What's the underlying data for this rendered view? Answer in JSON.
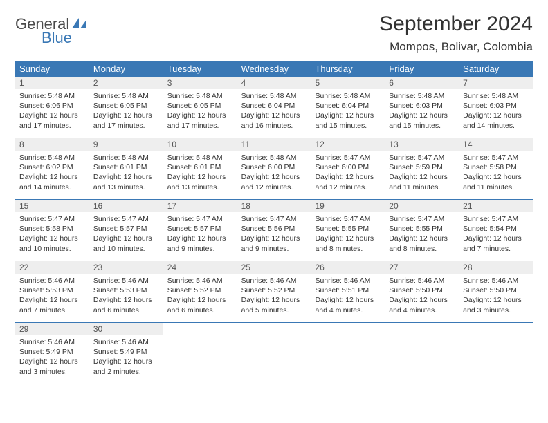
{
  "logo": {
    "word1": "General",
    "word2": "Blue"
  },
  "title": "September 2024",
  "subtitle": "Mompos, Bolivar, Colombia",
  "colors": {
    "header_bar": "#3a78b5",
    "header_text": "#ffffff",
    "day_number_bg": "#eeeeee",
    "week_border": "#3a78b5",
    "body_text": "#333333",
    "logo_gray": "#4a4a4a",
    "logo_blue": "#3a78b5"
  },
  "daysOfWeek": [
    "Sunday",
    "Monday",
    "Tuesday",
    "Wednesday",
    "Thursday",
    "Friday",
    "Saturday"
  ],
  "layout": {
    "columns": 7,
    "first_day_column": 0,
    "total_weeks": 5
  },
  "days": [
    {
      "n": "1",
      "sunrise": "5:48 AM",
      "sunset": "6:06 PM",
      "daylight": "12 hours and 17 minutes."
    },
    {
      "n": "2",
      "sunrise": "5:48 AM",
      "sunset": "6:05 PM",
      "daylight": "12 hours and 17 minutes."
    },
    {
      "n": "3",
      "sunrise": "5:48 AM",
      "sunset": "6:05 PM",
      "daylight": "12 hours and 17 minutes."
    },
    {
      "n": "4",
      "sunrise": "5:48 AM",
      "sunset": "6:04 PM",
      "daylight": "12 hours and 16 minutes."
    },
    {
      "n": "5",
      "sunrise": "5:48 AM",
      "sunset": "6:04 PM",
      "daylight": "12 hours and 15 minutes."
    },
    {
      "n": "6",
      "sunrise": "5:48 AM",
      "sunset": "6:03 PM",
      "daylight": "12 hours and 15 minutes."
    },
    {
      "n": "7",
      "sunrise": "5:48 AM",
      "sunset": "6:03 PM",
      "daylight": "12 hours and 14 minutes."
    },
    {
      "n": "8",
      "sunrise": "5:48 AM",
      "sunset": "6:02 PM",
      "daylight": "12 hours and 14 minutes."
    },
    {
      "n": "9",
      "sunrise": "5:48 AM",
      "sunset": "6:01 PM",
      "daylight": "12 hours and 13 minutes."
    },
    {
      "n": "10",
      "sunrise": "5:48 AM",
      "sunset": "6:01 PM",
      "daylight": "12 hours and 13 minutes."
    },
    {
      "n": "11",
      "sunrise": "5:48 AM",
      "sunset": "6:00 PM",
      "daylight": "12 hours and 12 minutes."
    },
    {
      "n": "12",
      "sunrise": "5:47 AM",
      "sunset": "6:00 PM",
      "daylight": "12 hours and 12 minutes."
    },
    {
      "n": "13",
      "sunrise": "5:47 AM",
      "sunset": "5:59 PM",
      "daylight": "12 hours and 11 minutes."
    },
    {
      "n": "14",
      "sunrise": "5:47 AM",
      "sunset": "5:58 PM",
      "daylight": "12 hours and 11 minutes."
    },
    {
      "n": "15",
      "sunrise": "5:47 AM",
      "sunset": "5:58 PM",
      "daylight": "12 hours and 10 minutes."
    },
    {
      "n": "16",
      "sunrise": "5:47 AM",
      "sunset": "5:57 PM",
      "daylight": "12 hours and 10 minutes."
    },
    {
      "n": "17",
      "sunrise": "5:47 AM",
      "sunset": "5:57 PM",
      "daylight": "12 hours and 9 minutes."
    },
    {
      "n": "18",
      "sunrise": "5:47 AM",
      "sunset": "5:56 PM",
      "daylight": "12 hours and 9 minutes."
    },
    {
      "n": "19",
      "sunrise": "5:47 AM",
      "sunset": "5:55 PM",
      "daylight": "12 hours and 8 minutes."
    },
    {
      "n": "20",
      "sunrise": "5:47 AM",
      "sunset": "5:55 PM",
      "daylight": "12 hours and 8 minutes."
    },
    {
      "n": "21",
      "sunrise": "5:47 AM",
      "sunset": "5:54 PM",
      "daylight": "12 hours and 7 minutes."
    },
    {
      "n": "22",
      "sunrise": "5:46 AM",
      "sunset": "5:53 PM",
      "daylight": "12 hours and 7 minutes."
    },
    {
      "n": "23",
      "sunrise": "5:46 AM",
      "sunset": "5:53 PM",
      "daylight": "12 hours and 6 minutes."
    },
    {
      "n": "24",
      "sunrise": "5:46 AM",
      "sunset": "5:52 PM",
      "daylight": "12 hours and 6 minutes."
    },
    {
      "n": "25",
      "sunrise": "5:46 AM",
      "sunset": "5:52 PM",
      "daylight": "12 hours and 5 minutes."
    },
    {
      "n": "26",
      "sunrise": "5:46 AM",
      "sunset": "5:51 PM",
      "daylight": "12 hours and 4 minutes."
    },
    {
      "n": "27",
      "sunrise": "5:46 AM",
      "sunset": "5:50 PM",
      "daylight": "12 hours and 4 minutes."
    },
    {
      "n": "28",
      "sunrise": "5:46 AM",
      "sunset": "5:50 PM",
      "daylight": "12 hours and 3 minutes."
    },
    {
      "n": "29",
      "sunrise": "5:46 AM",
      "sunset": "5:49 PM",
      "daylight": "12 hours and 3 minutes."
    },
    {
      "n": "30",
      "sunrise": "5:46 AM",
      "sunset": "5:49 PM",
      "daylight": "12 hours and 2 minutes."
    }
  ],
  "labels": {
    "sunrise": "Sunrise:",
    "sunset": "Sunset:",
    "daylight": "Daylight:"
  }
}
